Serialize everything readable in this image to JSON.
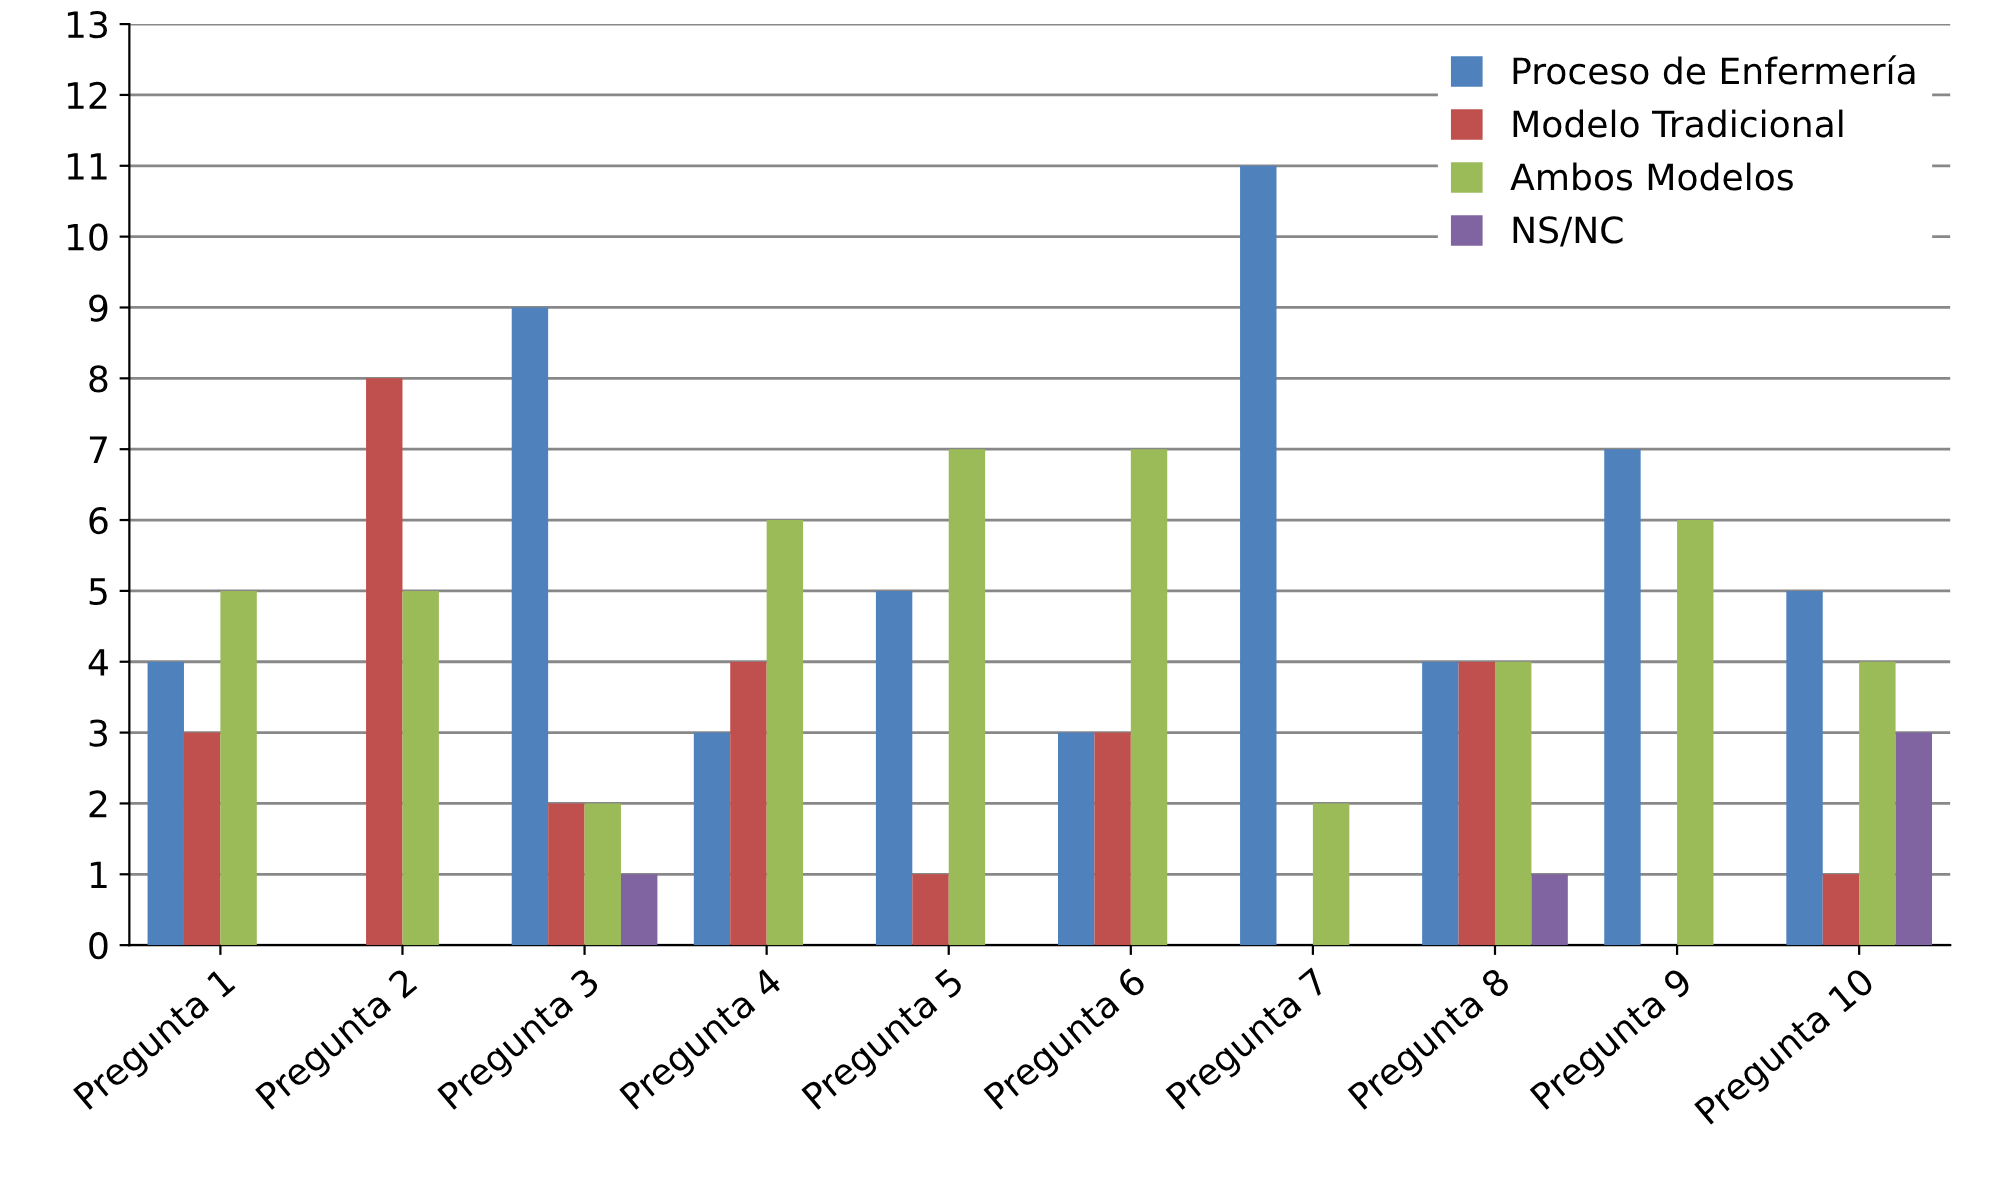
{
  "chart_data": {
    "type": "bar",
    "categories": [
      "Pregunta 1",
      "Pregunta 2",
      "Pregunta 3",
      "Pregunta 4",
      "Pregunta 5",
      "Pregunta 6",
      "Pregunta 7",
      "Pregunta 8",
      "Pregunta 9",
      "Pregunta 10"
    ],
    "series": [
      {
        "name": "Proceso de Enfermería",
        "color": "#4f81bd",
        "values": [
          4,
          0,
          9,
          3,
          5,
          3,
          11,
          4,
          7,
          5
        ]
      },
      {
        "name": "Modelo Tradicional",
        "color": "#c0504d",
        "values": [
          3,
          8,
          2,
          4,
          1,
          3,
          0,
          4,
          0,
          1
        ]
      },
      {
        "name": "Ambos Modelos",
        "color": "#9bbb59",
        "values": [
          5,
          5,
          2,
          6,
          7,
          7,
          2,
          4,
          6,
          4
        ]
      },
      {
        "name": "NS/NC",
        "color": "#8064a2",
        "values": [
          0,
          0,
          1,
          0,
          0,
          0,
          0,
          1,
          0,
          3
        ]
      }
    ],
    "ylim": [
      0,
      13
    ],
    "yticks": [
      0,
      1,
      2,
      3,
      4,
      5,
      6,
      7,
      8,
      9,
      10,
      11,
      12,
      13
    ],
    "grid": "y",
    "legend": "top right"
  }
}
